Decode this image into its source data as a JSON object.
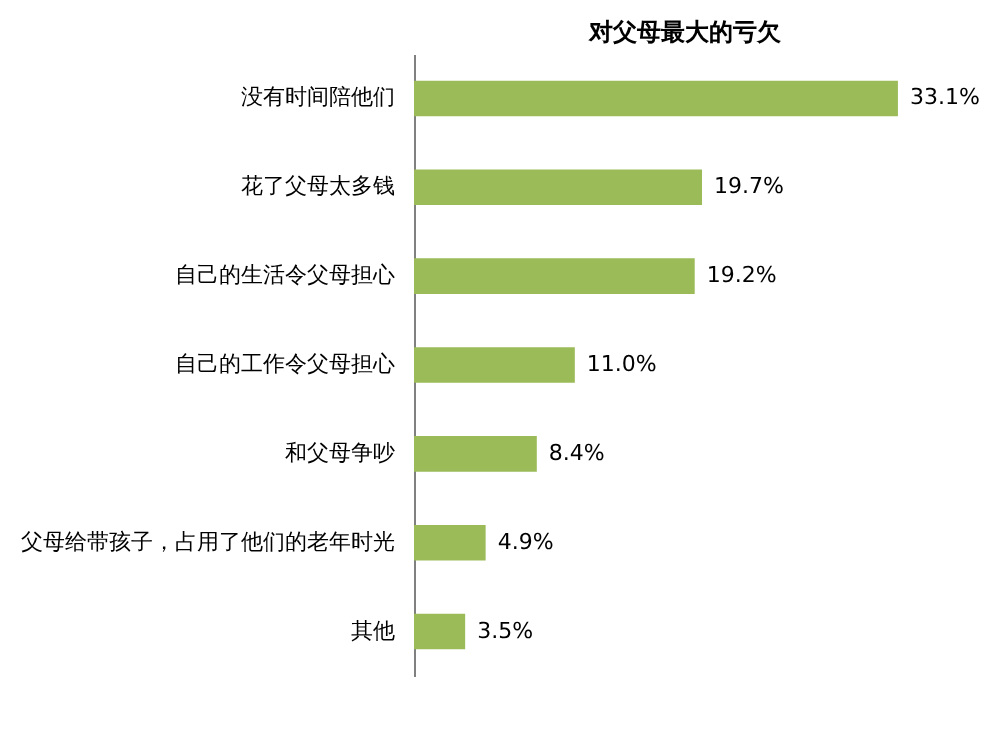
{
  "chart_data": {
    "type": "bar",
    "orientation": "horizontal",
    "title": "对父母最大的亏欠",
    "categories": [
      "没有时间陪他们",
      "花了父母太多钱",
      "自己的生活令父母担心",
      "自己的工作令父母担心",
      "和父母争吵",
      "父母给带孩子，占用了他们的老年时光",
      "其他"
    ],
    "values": [
      33.1,
      19.7,
      19.2,
      11.0,
      8.4,
      4.9,
      3.5
    ],
    "value_labels": [
      "33.1%",
      "19.7%",
      "19.2%",
      "11.0%",
      "8.4%",
      "4.9%",
      "3.5%"
    ],
    "color": "#9bbb59",
    "grid": false
  }
}
